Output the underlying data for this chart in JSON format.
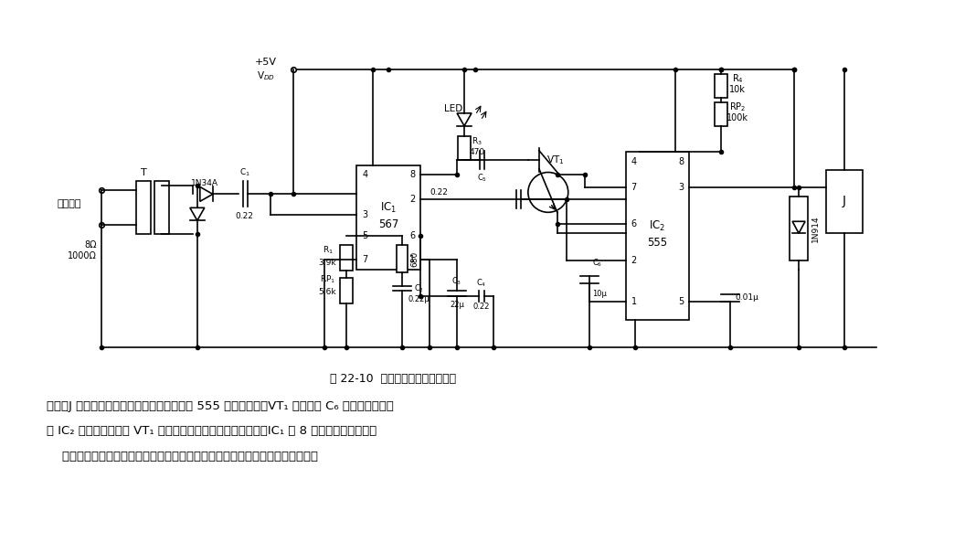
{
  "title": "图 22-10  载波信号处理、控制电路",
  "caption_line1": "置位，J 吸合，将负载的电源接通或断开。在 555 置位的同时，VT₁ 导通，将 C₆ 上原有的电荷通",
  "caption_line2": "过 IC₂ 内部的放电管和 VT₁ 放电，并保持。音频信号结束后，IC₁ 的 8 脚自动回至高电平。",
  "caption_line3": "    本译码、控制电路用于多种控制场合，如通控、遥测、工业控制、电话通信等。",
  "bg_color": "#ffffff",
  "text_color": "#000000",
  "fig_width": 10.56,
  "fig_height": 5.93
}
